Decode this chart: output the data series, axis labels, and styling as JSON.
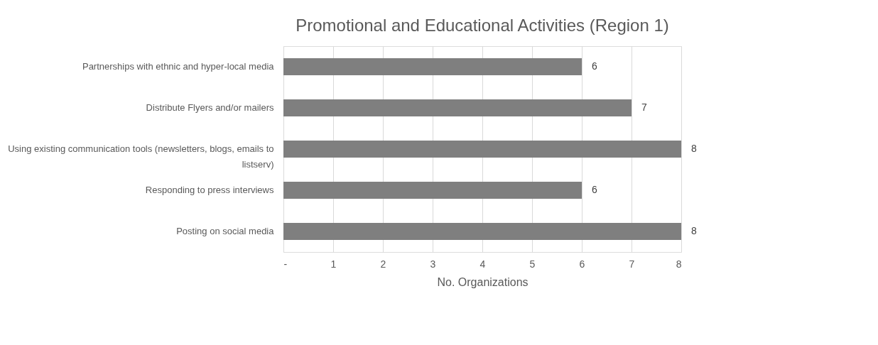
{
  "chart_data": {
    "type": "bar",
    "orientation": "horizontal",
    "title": "Promotional and Educational Activities (Region 1)",
    "xlabel": "No. Organizations",
    "categories": [
      "Partnerships with ethnic and hyper-local media",
      "Distribute Flyers and/or mailers",
      "Using existing communication tools (newsletters, blogs, emails to listserv)",
      "Responding to press interviews",
      "Posting on social media"
    ],
    "values": [
      6,
      7,
      8,
      6,
      8
    ],
    "color": "#7f7f7f",
    "xlim": [
      0,
      8
    ],
    "xticks": [
      {
        "value": 0,
        "label": "-"
      },
      1,
      2,
      3,
      4,
      5,
      6,
      7,
      8
    ],
    "grid": "x",
    "data_labels": true
  }
}
